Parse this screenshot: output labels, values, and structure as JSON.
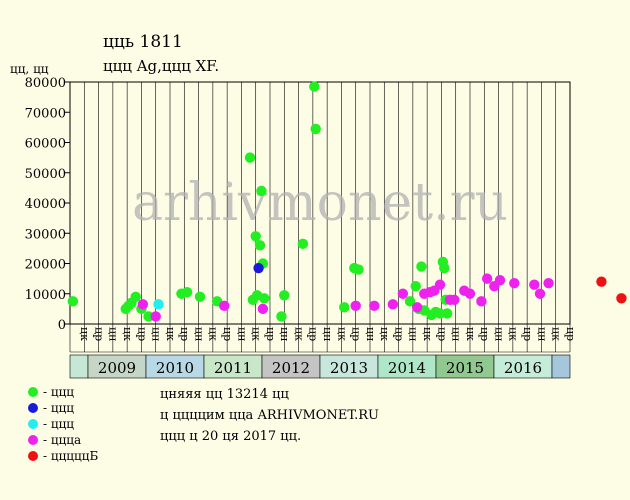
{
  "header": {
    "title": "цць 1811",
    "subtitle": "ццц Ag,ццц XF.",
    "y_unit": "цц, цц"
  },
  "watermark": "arhivmonet.ru",
  "legend": [
    {
      "label": "- ццц",
      "color": "#22ee22"
    },
    {
      "label": "- ццц",
      "color": "#1a1adc"
    },
    {
      "label": "- ццц",
      "color": "#22eeee"
    },
    {
      "label": "- ццца",
      "color": "#ee22ee"
    },
    {
      "label": "- цццццБ",
      "color": "#ee1111"
    }
  ],
  "notes": [
    "цняяя цц 13214 цц",
    "ц ццццим ццa ARHIVMONET.RU",
    "ццц ц 20 ця 2017 цц."
  ],
  "chart_data": {
    "type": "scatter",
    "ylim": [
      0,
      80000
    ],
    "yticks": [
      0,
      10000,
      20000,
      30000,
      40000,
      50000,
      60000,
      70000,
      80000
    ],
    "x_slot_labels": [
      "цк",
      "цр",
      "цн",
      "цк",
      "цр",
      "цн",
      "цк",
      "цр",
      "цн",
      "цк",
      "цр",
      "цн",
      "цк",
      "цр",
      "цн",
      "цк",
      "цр",
      "цн",
      "цк",
      "цр",
      "цн",
      "цк",
      "цр",
      "цн",
      "цк",
      "цр",
      "цн",
      "цк",
      "цр",
      "цн",
      "цк",
      "цр",
      "цн",
      "цк",
      "цр"
    ],
    "years": [
      {
        "label": "2009",
        "color": "#c6d6c6"
      },
      {
        "label": "2010",
        "color": "#b8d8e6"
      },
      {
        "label": "2011",
        "color": "#c8e6c8"
      },
      {
        "label": "2012",
        "color": "#c4c4c4"
      },
      {
        "label": "2013",
        "color": "#c8e6dc"
      },
      {
        "label": "2014",
        "color": "#b0e6c8"
      },
      {
        "label": "2015",
        "color": "#90c890"
      },
      {
        "label": "2016",
        "color": "#c4ecd8"
      }
    ],
    "year_band": {
      "first_label": "",
      "last_label": ""
    },
    "series": [
      {
        "name": "- ццц",
        "color": "#22ee22",
        "points": [
          [
            0.2,
            7500
          ],
          [
            3.9,
            5000
          ],
          [
            4.1,
            6000
          ],
          [
            4.3,
            7000
          ],
          [
            4.6,
            9000
          ],
          [
            5.0,
            5000
          ],
          [
            5.5,
            2500
          ],
          [
            7.8,
            10000
          ],
          [
            8.2,
            10500
          ],
          [
            9.1,
            9000
          ],
          [
            10.3,
            7500
          ],
          [
            12.6,
            55000
          ],
          [
            12.8,
            8000
          ],
          [
            13.0,
            29000
          ],
          [
            13.1,
            9500
          ],
          [
            13.3,
            26000
          ],
          [
            13.4,
            44000
          ],
          [
            13.5,
            20000
          ],
          [
            13.6,
            8500
          ],
          [
            14.8,
            2500
          ],
          [
            15.0,
            9500
          ],
          [
            16.3,
            26500
          ],
          [
            17.1,
            78500
          ],
          [
            17.2,
            64500
          ],
          [
            19.2,
            5500
          ],
          [
            19.9,
            18500
          ],
          [
            20.2,
            18000
          ],
          [
            23.8,
            7500
          ],
          [
            24.2,
            12500
          ],
          [
            24.4,
            5000
          ],
          [
            24.6,
            19000
          ],
          [
            24.8,
            4500
          ],
          [
            25.3,
            3000
          ],
          [
            25.6,
            4000
          ],
          [
            25.9,
            3500
          ],
          [
            26.1,
            20500
          ],
          [
            26.2,
            18500
          ],
          [
            26.3,
            8000
          ],
          [
            26.4,
            3500
          ]
        ]
      },
      {
        "name": "- ццц",
        "color": "#1a1adc",
        "points": [
          [
            13.2,
            18500
          ]
        ]
      },
      {
        "name": "- ццц",
        "color": "#22eeee",
        "points": [
          [
            6.2,
            6500
          ]
        ]
      },
      {
        "name": "- ццца",
        "color": "#ee22ee",
        "points": [
          [
            5.1,
            6500
          ],
          [
            6.0,
            2500
          ],
          [
            10.8,
            6000
          ],
          [
            13.5,
            5000
          ],
          [
            20.0,
            6000
          ],
          [
            21.3,
            6000
          ],
          [
            22.6,
            6500
          ],
          [
            23.3,
            10000
          ],
          [
            24.3,
            5500
          ],
          [
            24.8,
            10000
          ],
          [
            25.2,
            10500
          ],
          [
            25.5,
            11000
          ],
          [
            25.9,
            13000
          ],
          [
            26.6,
            8000
          ],
          [
            26.9,
            8000
          ],
          [
            27.6,
            11000
          ],
          [
            28.0,
            10000
          ],
          [
            28.8,
            7500
          ],
          [
            29.2,
            15000
          ],
          [
            29.7,
            12500
          ],
          [
            30.1,
            14500
          ],
          [
            31.1,
            13500
          ],
          [
            32.5,
            13000
          ],
          [
            32.9,
            10000
          ],
          [
            33.5,
            13500
          ]
        ]
      },
      {
        "name": "- цццццБ",
        "color": "#ee1111",
        "points": [
          [
            37.2,
            14000
          ],
          [
            38.6,
            8500
          ]
        ]
      }
    ]
  }
}
